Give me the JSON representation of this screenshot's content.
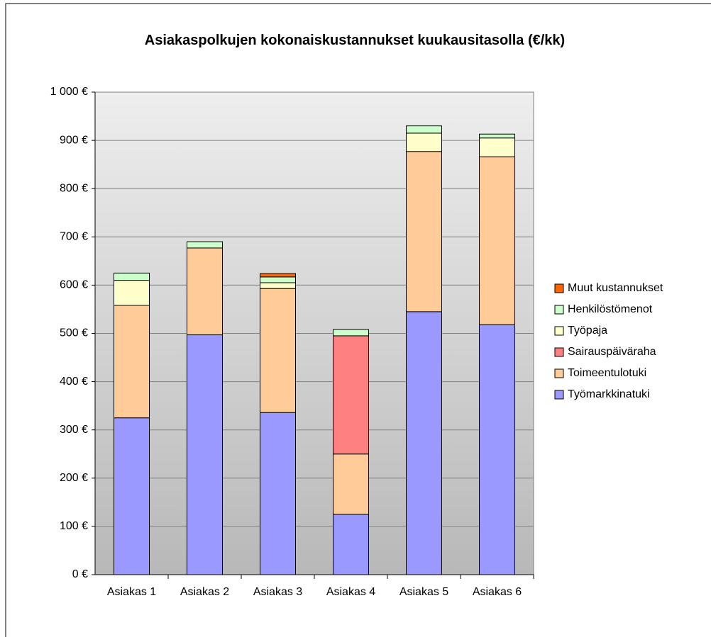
{
  "chart_data": {
    "type": "stacked_bar",
    "title": "Asiakaspolkujen kokonaiskustannukset kuukausitasolla (€/kk)",
    "categories": [
      "Asiakas 1",
      "Asiakas 2",
      "Asiakas 3",
      "Asiakas 4",
      "Asiakas 5",
      "Asiakas 6"
    ],
    "series": [
      {
        "name": "Työmarkkinatuki",
        "color": "#9999ff",
        "values": [
          325,
          497,
          336,
          125,
          545,
          518
        ]
      },
      {
        "name": "Toimeentulotuki",
        "color": "#ffcc99",
        "values": [
          233,
          180,
          257,
          125,
          332,
          348
        ]
      },
      {
        "name": "Sairauspäiväraha",
        "color": "#ff8080",
        "values": [
          0,
          0,
          0,
          245,
          0,
          0
        ]
      },
      {
        "name": "Työpaja",
        "color": "#ffffcc",
        "values": [
          52,
          0,
          12,
          0,
          38,
          39
        ]
      },
      {
        "name": "Henkilöstömenot",
        "color": "#ccffcc",
        "values": [
          15,
          13,
          12,
          13,
          15,
          8
        ]
      },
      {
        "name": "Muut kustannukset",
        "color": "#ff6600",
        "values": [
          0,
          0,
          7,
          0,
          0,
          0
        ]
      }
    ],
    "ylim": [
      0,
      1000
    ],
    "yticks": [
      {
        "value": 0,
        "label": "0 €"
      },
      {
        "value": 100,
        "label": "100 €"
      },
      {
        "value": 200,
        "label": "200 €"
      },
      {
        "value": 300,
        "label": "300 €"
      },
      {
        "value": 400,
        "label": "400 €"
      },
      {
        "value": 500,
        "label": "500 €"
      },
      {
        "value": 600,
        "label": "600 €"
      },
      {
        "value": 700,
        "label": "700 €"
      },
      {
        "value": 800,
        "label": "800 €"
      },
      {
        "value": 900,
        "label": "900 €"
      },
      {
        "value": 1000,
        "label": "1 000 €"
      }
    ],
    "grid": true,
    "legend": "right"
  }
}
